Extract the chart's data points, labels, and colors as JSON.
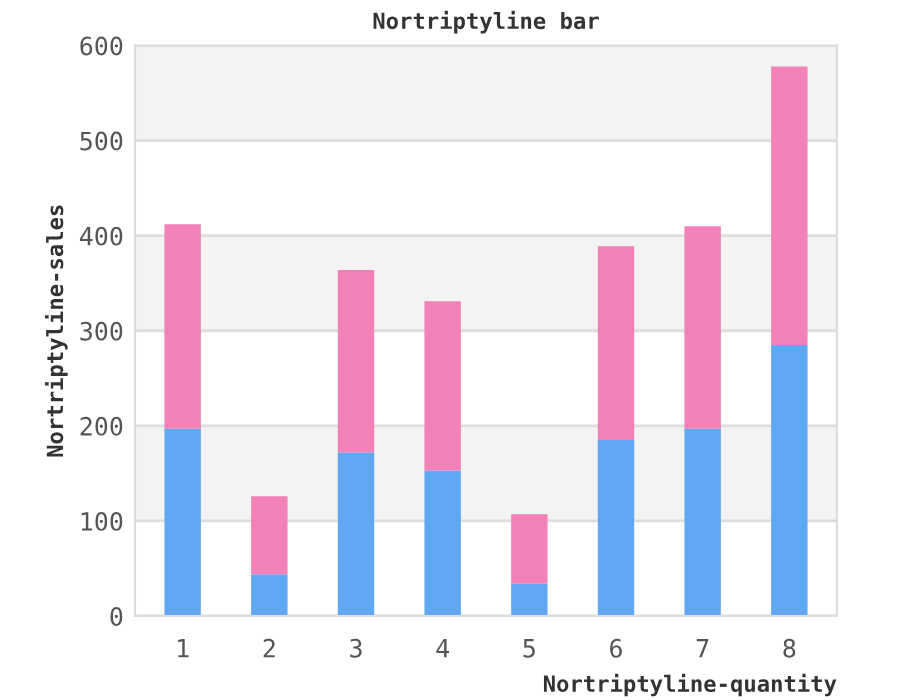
{
  "chart_data": {
    "type": "bar",
    "title": "Nortriptyline bar",
    "xlabel": "Nortriptyline-quantity",
    "ylabel": "Nortriptyline-sales",
    "categories": [
      "1",
      "2",
      "3",
      "4",
      "5",
      "6",
      "7",
      "8"
    ],
    "stacked": true,
    "series": [
      {
        "color": "#60a8f3",
        "values": [
          197,
          44,
          172,
          153,
          34,
          185,
          197,
          285
        ]
      },
      {
        "color": "#f281b8",
        "values": [
          215,
          82,
          192,
          178,
          73,
          204,
          213,
          293
        ]
      }
    ],
    "ylim": [
      0,
      600
    ],
    "yticks": [
      0,
      100,
      200,
      300,
      400,
      500,
      600
    ],
    "grid": "y",
    "legend": false,
    "bands": [
      {
        "axis": "y",
        "from": 100,
        "to": 200,
        "color": "#f3f3f3"
      },
      {
        "axis": "y",
        "from": 300,
        "to": 400,
        "color": "#f3f3f3"
      },
      {
        "axis": "y",
        "from": 500,
        "to": 600,
        "color": "#f3f3f3"
      }
    ]
  }
}
